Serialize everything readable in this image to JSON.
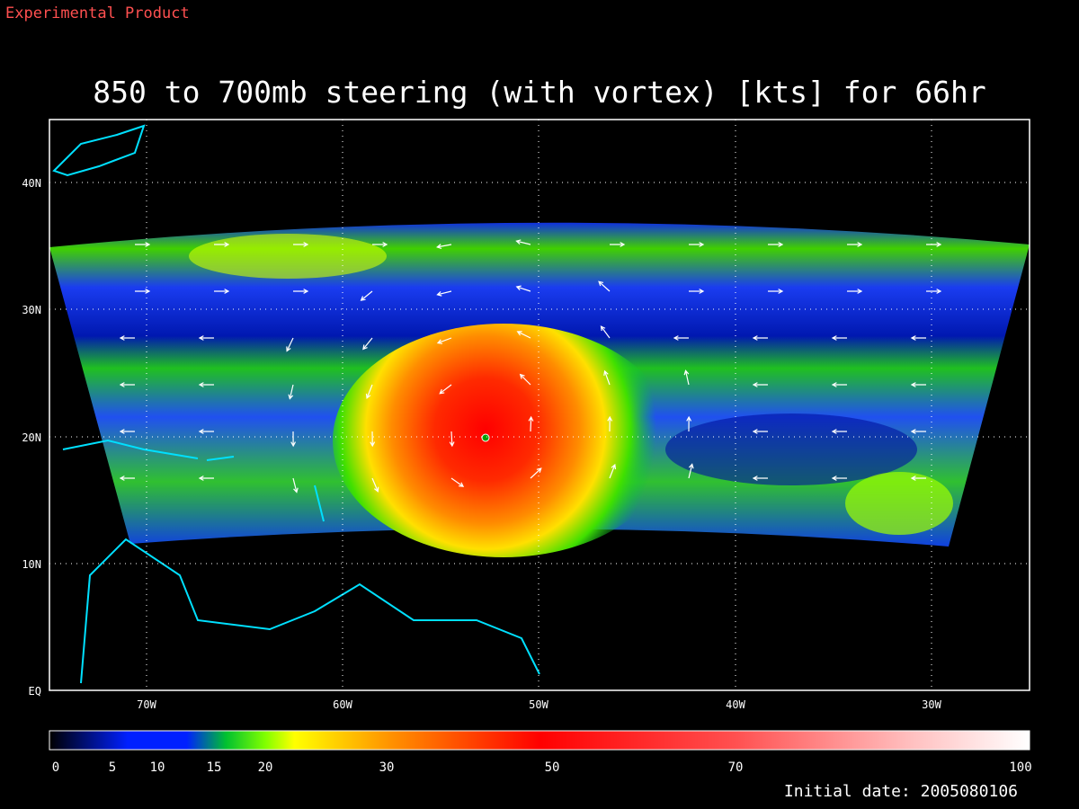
{
  "header": {
    "label": "Experimental Product"
  },
  "title": "850 to 700mb steering (with vortex) [kts] for 66hr",
  "map": {
    "lat_labels": [
      "40N",
      "30N",
      "20N",
      "10N",
      "EQ"
    ],
    "lon_labels": [
      "70W",
      "60W",
      "50W",
      "40W",
      "30W"
    ]
  },
  "colorbar": {
    "labels": [
      "0",
      "5",
      "10",
      "15",
      "20",
      "30",
      "50",
      "70",
      "100"
    ]
  },
  "footer": {
    "initial_date": "Initial date: 2005080106"
  }
}
